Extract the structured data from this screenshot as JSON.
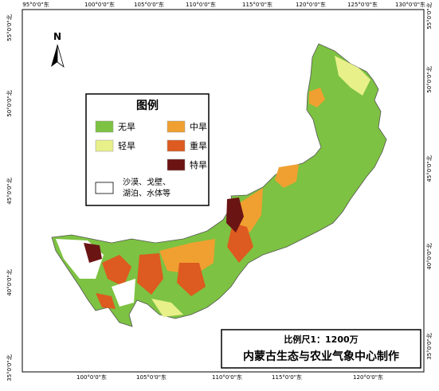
{
  "north": "N",
  "graticule": {
    "top": [
      "95°0'0\"东",
      "100°0'0\"东",
      "105°0'0\"东",
      "110°0'0\"东",
      "115°0'0\"东",
      "120°0'0\"东",
      "125°0'0\"东",
      "130°0'0\"东"
    ],
    "bottom": [
      "100°0'0\"东",
      "105°0'0\"东",
      "110°0'0\"东",
      "115°0'0\"东",
      "120°0'0\"东"
    ],
    "left": [
      "55°0'0\"北",
      "50°0'0\"北",
      "45°0'0\"北",
      "40°0'0\"北",
      "35°0'0\"北"
    ],
    "right": [
      "55°0'0\"北",
      "50°0'0\"北",
      "45°0'0\"北",
      "40°0'0\"北",
      "35°0'0\"北"
    ]
  },
  "legend": {
    "title": "图例",
    "items": [
      {
        "label": "无旱",
        "color": "#7dc242"
      },
      {
        "label": "中旱",
        "color": "#f0a030"
      },
      {
        "label": "轻旱",
        "color": "#e8f08a"
      },
      {
        "label": "重旱",
        "color": "#dd5a20"
      },
      {
        "label": "特旱",
        "color": "#6b1414"
      }
    ],
    "other": {
      "lines": [
        "沙漠、戈壁、",
        "湖泊、水体等"
      ],
      "color": "#ffffff"
    }
  },
  "scale": "比例尺1：1200万",
  "credit": "内蒙古生态与农业气象中心制作"
}
